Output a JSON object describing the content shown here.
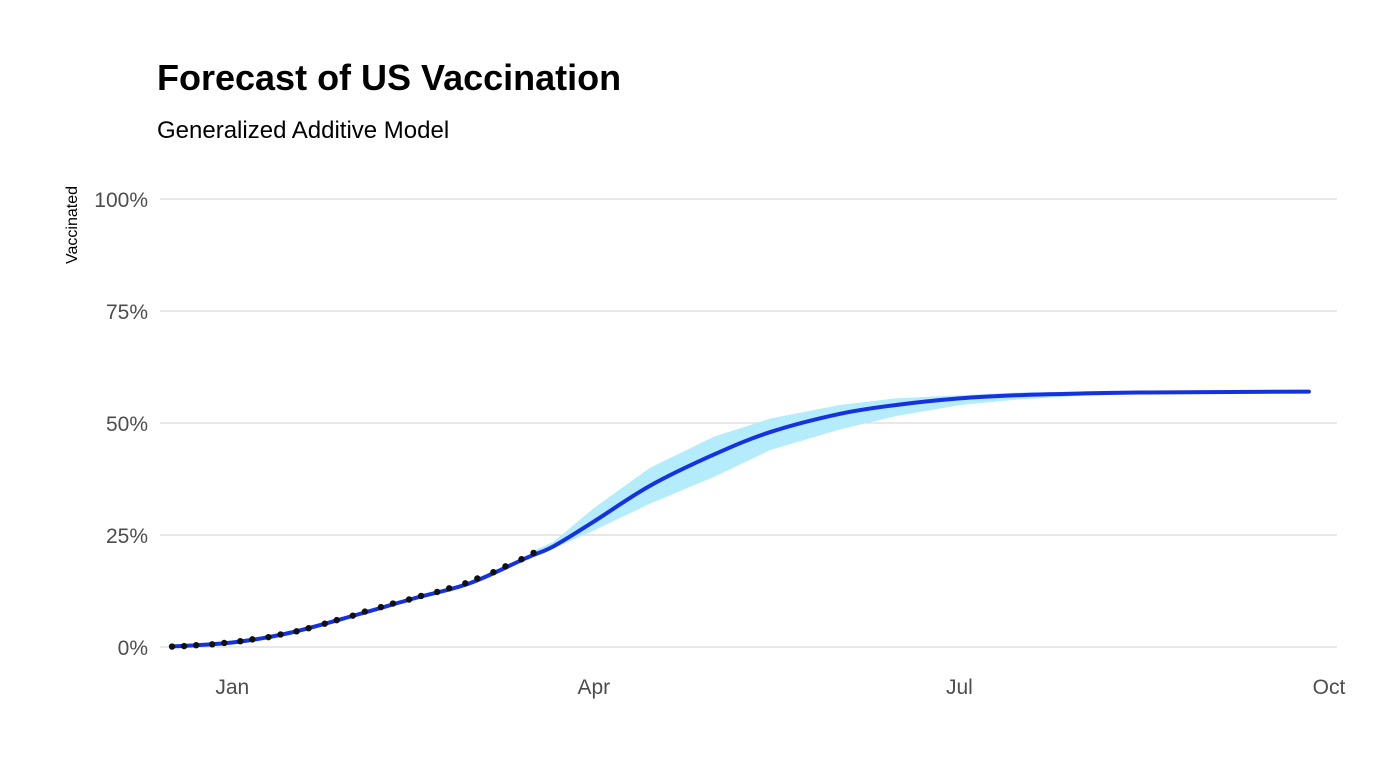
{
  "chart_data": {
    "type": "line",
    "title": "Forecast of US Vaccination",
    "subtitle": "Generalized Additive Model",
    "ylabel": "Vaccinated",
    "xlabel": "",
    "y_ticks": [
      "0%",
      "25%",
      "50%",
      "75%",
      "100%"
    ],
    "y_tick_values": [
      0,
      25,
      50,
      75,
      100
    ],
    "x_ticks": [
      "Jan",
      "Apr",
      "Jul",
      "Oct"
    ],
    "x_tick_values": [
      "2021-01-01",
      "2021-04-01",
      "2021-07-01",
      "2021-10-01"
    ],
    "xlim": [
      "2020-12-14",
      "2021-10-03"
    ],
    "ylim": [
      0,
      100
    ],
    "grid": "horizontal",
    "legend": "none",
    "colors": {
      "observed": "#111111",
      "forecast": "#1432e0",
      "band": "#b4ecfb",
      "grid": "#d0d0d0"
    },
    "series": [
      {
        "kind": "observed-points",
        "points": [
          [
            "2020-12-17",
            0.1
          ],
          [
            "2020-12-20",
            0.2
          ],
          [
            "2020-12-23",
            0.4
          ],
          [
            "2020-12-27",
            0.6
          ],
          [
            "2020-12-30",
            0.9
          ],
          [
            "2021-01-03",
            1.3
          ],
          [
            "2021-01-06",
            1.7
          ],
          [
            "2021-01-10",
            2.2
          ],
          [
            "2021-01-13",
            2.8
          ],
          [
            "2021-01-17",
            3.5
          ],
          [
            "2021-01-20",
            4.2
          ],
          [
            "2021-01-24",
            5.2
          ],
          [
            "2021-01-27",
            6.0
          ],
          [
            "2021-01-31",
            7.0
          ],
          [
            "2021-02-03",
            7.9
          ],
          [
            "2021-02-07",
            8.9
          ],
          [
            "2021-02-10",
            9.7
          ],
          [
            "2021-02-14",
            10.6
          ],
          [
            "2021-02-17",
            11.4
          ],
          [
            "2021-02-21",
            12.3
          ],
          [
            "2021-02-24",
            13.1
          ],
          [
            "2021-02-28",
            14.2
          ],
          [
            "2021-03-03",
            15.3
          ],
          [
            "2021-03-07",
            16.7
          ],
          [
            "2021-03-10",
            18.0
          ],
          [
            "2021-03-14",
            19.6
          ],
          [
            "2021-03-17",
            21.0
          ]
        ]
      },
      {
        "kind": "forecast-line",
        "points": [
          [
            "2020-12-17",
            0.1
          ],
          [
            "2021-01-01",
            1.0
          ],
          [
            "2021-01-15",
            3.1
          ],
          [
            "2021-02-01",
            7.2
          ],
          [
            "2021-02-15",
            10.8
          ],
          [
            "2021-03-01",
            14.2
          ],
          [
            "2021-03-15",
            19.8
          ],
          [
            "2021-03-22",
            22.5
          ],
          [
            "2021-04-01",
            28.0
          ],
          [
            "2021-04-15",
            36.0
          ],
          [
            "2021-05-01",
            43.0
          ],
          [
            "2021-05-15",
            48.0
          ],
          [
            "2021-06-01",
            52.0
          ],
          [
            "2021-06-15",
            54.0
          ],
          [
            "2021-07-01",
            55.5
          ],
          [
            "2021-07-15",
            56.2
          ],
          [
            "2021-08-01",
            56.6
          ],
          [
            "2021-08-15",
            56.8
          ],
          [
            "2021-09-01",
            56.9
          ],
          [
            "2021-09-26",
            57.0
          ]
        ]
      },
      {
        "kind": "confidence-band",
        "points": [
          [
            "2021-03-17",
            21.0,
            21.5
          ],
          [
            "2021-03-22",
            22.0,
            23.5
          ],
          [
            "2021-04-01",
            26.0,
            31.0
          ],
          [
            "2021-04-15",
            32.0,
            40.0
          ],
          [
            "2021-05-01",
            38.0,
            47.0
          ],
          [
            "2021-05-15",
            44.0,
            51.0
          ],
          [
            "2021-06-01",
            48.5,
            54.0
          ],
          [
            "2021-06-15",
            51.5,
            55.5
          ],
          [
            "2021-07-01",
            54.0,
            56.2
          ],
          [
            "2021-07-15",
            55.2,
            56.8
          ],
          [
            "2021-08-01",
            56.1,
            57.0
          ],
          [
            "2021-09-01",
            56.8,
            57.1
          ],
          [
            "2021-09-26",
            56.9,
            57.1
          ]
        ]
      }
    ]
  }
}
